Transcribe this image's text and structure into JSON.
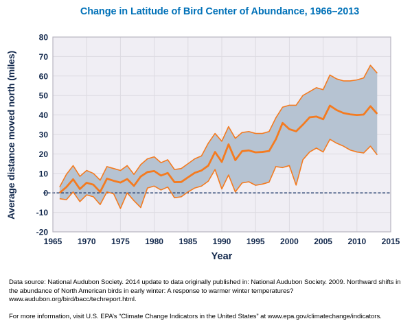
{
  "chart_data": {
    "type": "area",
    "title": "Change in Latitude of Bird Center of Abundance, 1966–2013",
    "xlabel": "Year",
    "ylabel": "Average distance moved north (miles)",
    "xlim": [
      1965,
      2015
    ],
    "ylim": [
      -20,
      80
    ],
    "x_ticks": [
      1965,
      1970,
      1975,
      1980,
      1985,
      1990,
      1995,
      2000,
      2005,
      2010,
      2015
    ],
    "y_ticks": [
      -20,
      -10,
      0,
      10,
      20,
      30,
      40,
      50,
      60,
      70,
      80
    ],
    "grid": true,
    "zero_reference_line": 0,
    "x": [
      1966,
      1967,
      1968,
      1969,
      1970,
      1971,
      1972,
      1973,
      1974,
      1975,
      1976,
      1977,
      1978,
      1979,
      1980,
      1981,
      1982,
      1983,
      1984,
      1985,
      1986,
      1987,
      1988,
      1989,
      1990,
      1991,
      1992,
      1993,
      1994,
      1995,
      1996,
      1997,
      1998,
      1999,
      2000,
      2001,
      2002,
      2003,
      2004,
      2005,
      2006,
      2007,
      2008,
      2009,
      2010,
      2011,
      2012,
      2013
    ],
    "series": [
      {
        "name": "center",
        "values": [
          0.0,
          3.0,
          7.0,
          2.0,
          5.2,
          4.2,
          0.5,
          7.3,
          6.2,
          5.3,
          7.1,
          3.6,
          8.4,
          10.7,
          11.2,
          8.9,
          10.2,
          5.5,
          5.6,
          8.0,
          10.3,
          11.5,
          14.0,
          21.0,
          15.9,
          24.9,
          16.8,
          21.4,
          21.8,
          20.8,
          21.0,
          21.5,
          27.5,
          35.9,
          32.7,
          31.6,
          35.0,
          38.8,
          39.2,
          37.8,
          44.8,
          42.5,
          41.0,
          40.3,
          40.0,
          40.2,
          44.5,
          40.6
        ]
      },
      {
        "name": "lower_95ci",
        "values": [
          -3.0,
          -3.5,
          0.5,
          -4.5,
          -1.0,
          -2.0,
          -6.0,
          0.5,
          -0.5,
          -8.0,
          0.0,
          -4.0,
          -7.5,
          2.5,
          3.5,
          1.5,
          3.0,
          -2.5,
          -2.0,
          0.5,
          2.5,
          3.5,
          6.0,
          12.0,
          2.0,
          9.2,
          0.5,
          5.1,
          5.7,
          3.9,
          4.5,
          5.5,
          13.5,
          13.0,
          14.0,
          4.0,
          17.0,
          21.0,
          23.0,
          21.0,
          27.5,
          25.5,
          24.0,
          22.0,
          21.0,
          20.5,
          24.0,
          19.5
        ]
      },
      {
        "name": "upper_95ci",
        "values": [
          3.0,
          9.5,
          14.0,
          8.5,
          11.5,
          10.0,
          6.5,
          13.5,
          12.5,
          11.5,
          14.0,
          9.5,
          14.5,
          17.5,
          18.5,
          15.5,
          17.0,
          12.0,
          12.5,
          15.0,
          17.5,
          19.0,
          25.5,
          30.5,
          26.5,
          34.0,
          28.0,
          31.0,
          31.5,
          30.5,
          30.5,
          31.5,
          38.5,
          44.0,
          45.0,
          45.0,
          50.0,
          52.0,
          54.0,
          53.0,
          60.5,
          58.5,
          57.5,
          57.5,
          58.0,
          59.0,
          65.5,
          61.5
        ]
      }
    ],
    "colors": {
      "title_blue": "#0071b8",
      "axis_navy": "#12284c",
      "plot_bg": "#f0eef4",
      "grid": "#dcdae1",
      "border": "#b8b5c0",
      "band_fill": "#b6c3d2",
      "line": "#f47b20",
      "zero_line": "#1c3667"
    },
    "legend_position": "none"
  },
  "footer": {
    "source_note": "Data source: National Audubon Society. 2014 update to data originally published in: National Audubon Society. 2009. Northward shifts in the abundance of North American birds in early winter: A response to warmer winter temperatures? www.audubon.org/bird/bacc/techreport.html.",
    "more_info": "For more information, visit U.S. EPA’s “Climate Change Indicators in the United States” at www.epa.gov/climatechange/indicators."
  }
}
